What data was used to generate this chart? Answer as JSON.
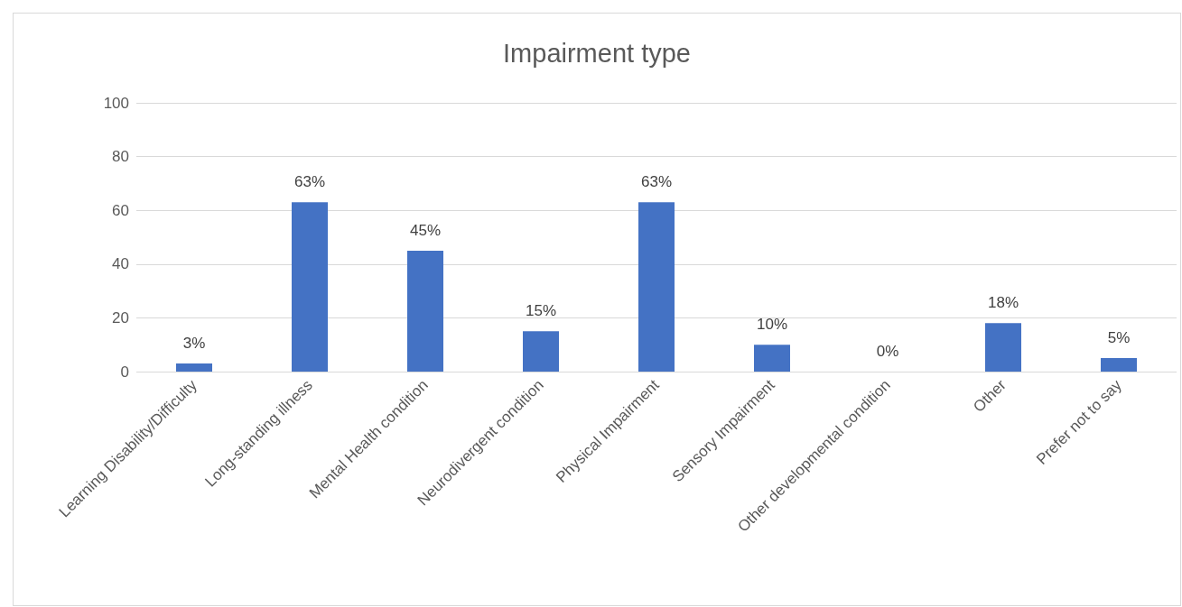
{
  "chart_data": {
    "type": "bar",
    "title": "Impairment type",
    "categories": [
      "Learning Disability/Difficulty",
      "Long-standing illness",
      "Mental Health condition",
      "Neurodivergent condition",
      "Physical Impairment",
      "Sensory Impairment",
      "Other developmental condition",
      "Other",
      "Prefer not to say"
    ],
    "values": [
      3,
      63,
      45,
      15,
      63,
      10,
      0,
      18,
      5
    ],
    "value_labels": [
      "3%",
      "63%",
      "45%",
      "15%",
      "63%",
      "10%",
      "0%",
      "18%",
      "5%"
    ],
    "color": "#4472c4",
    "ylim": [
      0,
      100
    ],
    "yticks": [
      0,
      20,
      40,
      60,
      80,
      100
    ],
    "grid": "y"
  }
}
